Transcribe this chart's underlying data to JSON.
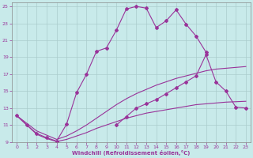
{
  "xlabel": "Windchill (Refroidissement éolien,°C)",
  "bg_color": "#c8eaea",
  "line_color": "#993399",
  "xlim": [
    -0.5,
    23.5
  ],
  "ylim": [
    9,
    25.5
  ],
  "yticks": [
    9,
    11,
    13,
    15,
    17,
    19,
    21,
    23,
    25
  ],
  "xticks": [
    0,
    1,
    2,
    3,
    4,
    5,
    6,
    7,
    8,
    9,
    10,
    11,
    12,
    13,
    14,
    15,
    16,
    17,
    18,
    19,
    20,
    21,
    22,
    23
  ],
  "grid_color": "#aacccc",
  "font_color": "#993399",
  "line1_x": [
    0,
    1,
    2,
    3,
    4,
    5,
    6,
    7,
    8,
    9,
    10,
    11,
    12,
    13,
    14,
    15,
    16,
    17,
    18,
    19
  ],
  "line1_y": [
    12.1,
    11.0,
    10.0,
    9.5,
    9.1,
    11.1,
    14.8,
    17.0,
    19.7,
    20.1,
    22.2,
    24.7,
    25.0,
    24.8,
    22.5,
    23.3,
    24.6,
    22.9,
    21.5,
    19.6
  ],
  "line2_x": [
    0,
    1,
    2,
    3,
    4,
    5,
    6,
    7,
    8,
    9,
    10,
    11,
    12,
    13,
    14,
    15,
    16,
    17,
    18,
    19,
    20,
    21,
    22,
    23
  ],
  "line2_y": [
    12.1,
    11.2,
    10.3,
    9.8,
    9.3,
    9.7,
    10.3,
    11.0,
    11.8,
    12.6,
    13.4,
    14.1,
    14.7,
    15.2,
    15.7,
    16.1,
    16.5,
    16.8,
    17.1,
    17.4,
    17.6,
    17.7,
    17.8,
    17.9
  ],
  "line3_x": [
    0,
    1,
    2,
    3,
    4,
    5,
    6,
    7,
    8,
    9,
    10,
    11,
    12,
    13,
    14,
    15,
    16,
    17,
    18,
    19,
    20,
    21,
    22,
    23
  ],
  "line3_y": [
    12.1,
    11.0,
    9.9,
    9.4,
    9.05,
    9.3,
    9.7,
    10.1,
    10.6,
    11.0,
    11.4,
    11.8,
    12.1,
    12.4,
    12.6,
    12.8,
    13.0,
    13.2,
    13.4,
    13.5,
    13.6,
    13.7,
    13.75,
    13.8
  ],
  "line4_x": [
    10,
    11,
    12,
    13,
    14,
    15,
    16,
    17,
    18,
    19,
    20,
    21,
    22,
    23
  ],
  "line4_y": [
    11.0,
    12.0,
    13.0,
    13.5,
    14.0,
    14.7,
    15.4,
    16.1,
    16.8,
    19.3,
    16.1,
    15.0,
    13.1,
    13.0
  ]
}
